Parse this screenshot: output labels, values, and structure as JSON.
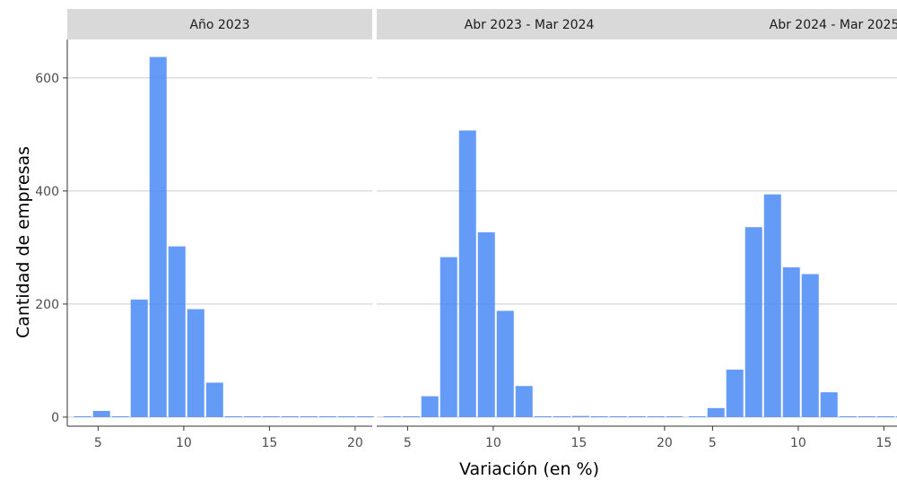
{
  "chart_data": {
    "type": "bar",
    "xlabel": "Variación (en %)",
    "ylabel": "Cantidad de empresas",
    "xlim": [
      3.2,
      21.0
    ],
    "ylim": [
      -16,
      668
    ],
    "x_ticks": [
      5,
      10,
      15,
      20
    ],
    "y_ticks": [
      0,
      200,
      400,
      600
    ],
    "grid": true,
    "bar_color": "#4285f4",
    "bin_width": 1.1,
    "panels": [
      {
        "title": "Año 2023",
        "bars": [
          {
            "x": 4.1,
            "y": 0
          },
          {
            "x": 5.2,
            "y": 11
          },
          {
            "x": 6.3,
            "y": 0
          },
          {
            "x": 7.4,
            "y": 208
          },
          {
            "x": 8.5,
            "y": 637
          },
          {
            "x": 9.6,
            "y": 302
          },
          {
            "x": 10.7,
            "y": 191
          },
          {
            "x": 11.8,
            "y": 61
          },
          {
            "x": 12.9,
            "y": 0
          },
          {
            "x": 14.0,
            "y": 0
          },
          {
            "x": 15.1,
            "y": 0
          },
          {
            "x": 16.2,
            "y": 0
          },
          {
            "x": 17.3,
            "y": 0
          },
          {
            "x": 18.4,
            "y": 0
          },
          {
            "x": 19.5,
            "y": 0
          },
          {
            "x": 20.6,
            "y": 1
          }
        ]
      },
      {
        "title": "Abr 2023 - Mar 2024",
        "bars": [
          {
            "x": 4.1,
            "y": 0
          },
          {
            "x": 5.2,
            "y": 1
          },
          {
            "x": 6.3,
            "y": 37
          },
          {
            "x": 7.4,
            "y": 283
          },
          {
            "x": 8.5,
            "y": 507
          },
          {
            "x": 9.6,
            "y": 327
          },
          {
            "x": 10.7,
            "y": 188
          },
          {
            "x": 11.8,
            "y": 55
          },
          {
            "x": 12.9,
            "y": 0
          },
          {
            "x": 14.0,
            "y": 0
          },
          {
            "x": 15.1,
            "y": 2
          },
          {
            "x": 16.2,
            "y": 0
          },
          {
            "x": 17.3,
            "y": 0
          },
          {
            "x": 18.4,
            "y": 0
          },
          {
            "x": 19.5,
            "y": 0
          },
          {
            "x": 20.6,
            "y": 1
          }
        ]
      },
      {
        "title": "Abr 2024 - Mar 2025",
        "bars": [
          {
            "x": 4.1,
            "y": 0
          },
          {
            "x": 5.2,
            "y": 16
          },
          {
            "x": 6.3,
            "y": 84
          },
          {
            "x": 7.4,
            "y": 336
          },
          {
            "x": 8.5,
            "y": 394
          },
          {
            "x": 9.6,
            "y": 265
          },
          {
            "x": 10.7,
            "y": 253
          },
          {
            "x": 11.8,
            "y": 44
          },
          {
            "x": 12.9,
            "y": 0
          },
          {
            "x": 14.0,
            "y": 0
          },
          {
            "x": 15.1,
            "y": 0
          },
          {
            "x": 16.2,
            "y": 0
          }
        ]
      }
    ]
  }
}
